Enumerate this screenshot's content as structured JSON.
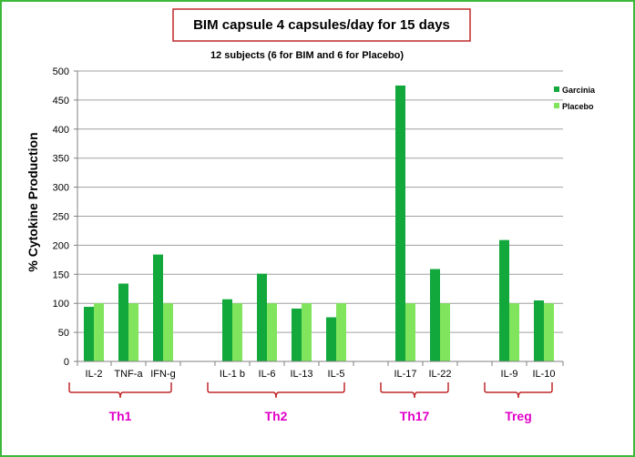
{
  "chart_data": {
    "type": "bar",
    "title": "BIM capsule 4 capsules/day for 15 days",
    "subtitle": "12 subjects (6 for BIM and 6 for Placebo)",
    "xlabel": "",
    "ylabel": "% Cytokine Production",
    "ylim": [
      0,
      500
    ],
    "yticks": [
      0,
      50,
      100,
      150,
      200,
      250,
      300,
      350,
      400,
      450,
      500
    ],
    "grid": true,
    "legend_position": "top-right",
    "categories": [
      "IL-2",
      "TNF-a",
      "IFN-g",
      "IL-1 b",
      "IL-6",
      "IL-13",
      "IL-5",
      "IL-17",
      "IL-22",
      "IL-9",
      "IL-10"
    ],
    "series": [
      {
        "name": "Garcinia",
        "color": "#12a83c",
        "values": [
          94,
          134,
          184,
          107,
          151,
          91,
          76,
          475,
          159,
          209,
          105
        ]
      },
      {
        "name": "Placebo",
        "color": "#80e45c",
        "values": [
          100,
          100,
          100,
          100,
          100,
          100,
          100,
          100,
          100,
          100,
          100
        ]
      }
    ],
    "groups": [
      {
        "label": "Th1",
        "categories": [
          "IL-2",
          "TNF-a",
          "IFN-g"
        ]
      },
      {
        "label": "Th2",
        "categories": [
          "IL-1 b",
          "IL-6",
          "IL-13",
          "IL-5"
        ]
      },
      {
        "label": "Th17",
        "categories": [
          "IL-17",
          "IL-22"
        ]
      },
      {
        "label": "Treg",
        "categories": [
          "IL-9",
          "IL-10"
        ]
      }
    ],
    "colors": {
      "grid": "#a0a0a0",
      "bracket": "#c0282c",
      "group_label": "#e000c8",
      "title_border": "#c0282c"
    }
  }
}
